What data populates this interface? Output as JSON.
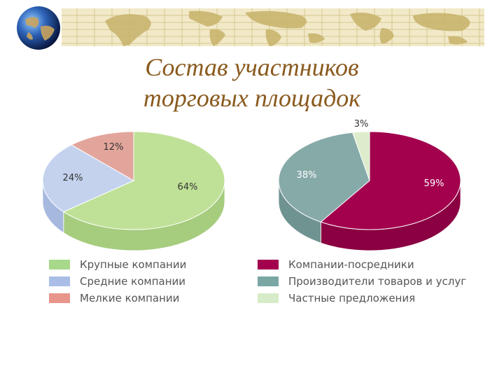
{
  "title_line1": "Состав участников",
  "title_line2": "торговых площадок",
  "chart_data": [
    {
      "type": "pie",
      "categories": [
        "Крупные компании",
        "Средние компании",
        "Мелкие компании"
      ],
      "values": [
        64,
        24,
        12
      ],
      "labels": [
        "64%",
        "24%",
        "12%"
      ],
      "colors": [
        "#bfe197",
        "#c4d2ee",
        "#e2a59b"
      ],
      "side_colors": [
        "#a6cc7e",
        "#a6b8de",
        "#cf8c80"
      ],
      "legend_colors": [
        "#a8d889",
        "#a9bde6",
        "#e8958b"
      ]
    },
    {
      "type": "pie",
      "categories": [
        "Компании-посредники",
        "Производители товаров и услуг",
        "Частные предложения"
      ],
      "values": [
        59,
        38,
        3
      ],
      "labels": [
        "59%",
        "38%",
        "3%"
      ],
      "colors": [
        "#a3004e",
        "#86aaa8",
        "#ddeccb"
      ],
      "side_colors": [
        "#8a0042",
        "#6f9391",
        "#c7dbb3"
      ],
      "legend_colors": [
        "#a3004e",
        "#7aa6a4",
        "#d6ecc8"
      ]
    }
  ]
}
